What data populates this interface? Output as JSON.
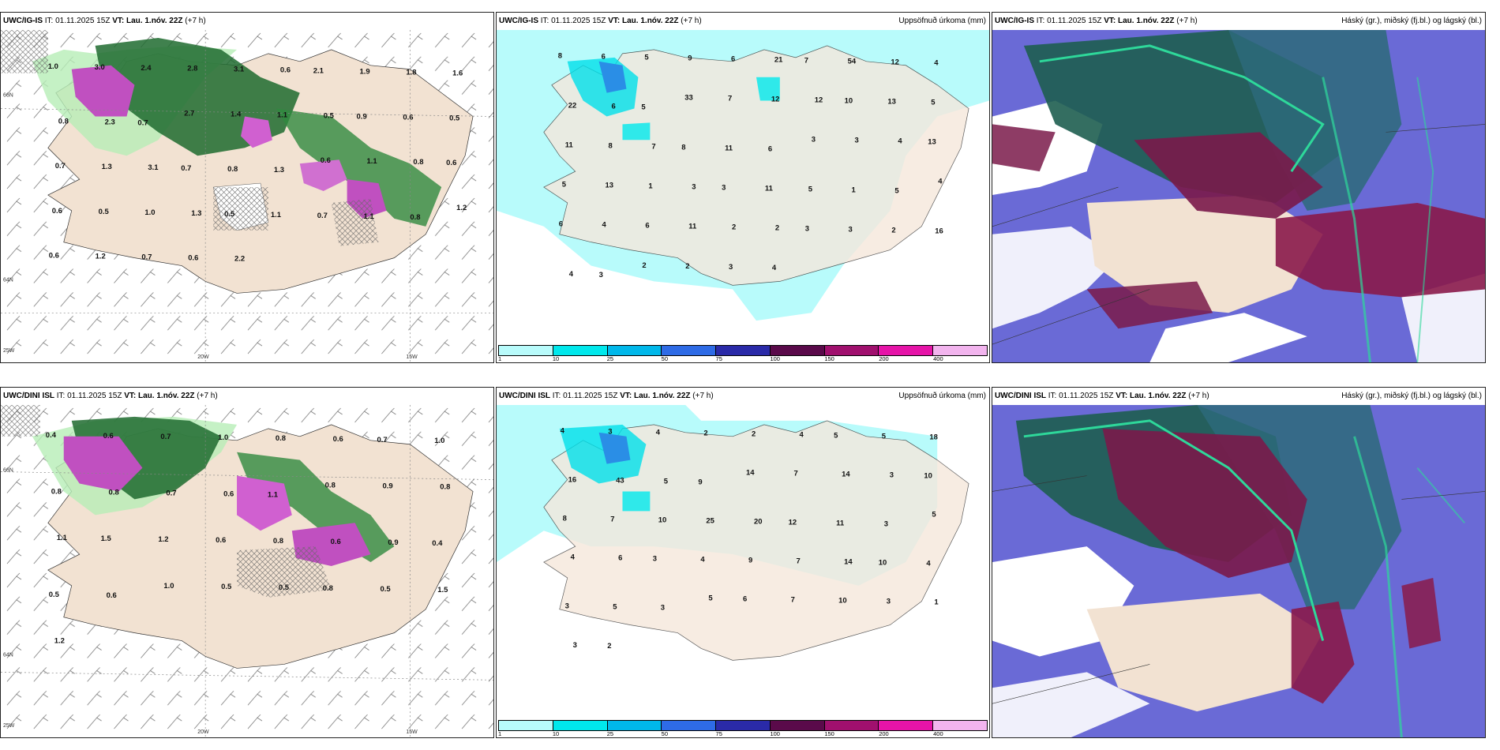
{
  "panels": {
    "p1": {
      "model": "UWC/IG-IS",
      "it_label": "IT:",
      "it": "01.11.2025 15Z",
      "vt_label": "VT:",
      "vt": "Lau. 1.nóv. 22Z",
      "offset": "(+7 h)",
      "right_title": ""
    },
    "p2": {
      "model": "UWC/IG-IS",
      "it_label": "IT:",
      "it": "01.11.2025 15Z",
      "vt_label": "VT:",
      "vt": "Lau. 1.nóv. 22Z",
      "offset": "(+7 h)",
      "right_title": "Uppsöfnuð úrkoma (mm)"
    },
    "p3": {
      "model": "UWC/IG-IS",
      "it_label": "IT:",
      "it": "01.11.2025 15Z",
      "vt_label": "VT:",
      "vt": "Lau. 1.nóv. 22Z",
      "offset": "(+7 h)",
      "right_title": "Háský (gr.), miðský (fj.bl.) og lágský (bl.)"
    },
    "p4": {
      "model": "UWC/DINI ISL",
      "it_label": "IT:",
      "it": "01.11.2025 15Z",
      "vt_label": "VT:",
      "vt": "Lau. 1.nóv. 22Z",
      "offset": "(+7 h)",
      "right_title": ""
    },
    "p5": {
      "model": "UWC/DINI ISL",
      "it_label": "IT:",
      "it": "01.11.2025 15Z",
      "vt_label": "VT:",
      "vt": "Lau. 1.nóv. 22Z",
      "offset": "(+7 h)",
      "right_title": "Uppsöfnuð úrkoma (mm)"
    },
    "p6": {
      "model": "UWC/DINI ISL",
      "it_label": "IT:",
      "it": "01.11.2025 15Z",
      "vt_label": "VT:",
      "vt": "Lau. 1.nóv. 22Z",
      "offset": "(+7 h)",
      "right_title": "Háský (gr.), miðský (fj.bl.) og lágský (bl.)"
    }
  },
  "axis_labels": {
    "lat66": "66N",
    "lat64": "64N",
    "lon25": "25W",
    "lon20": "20W",
    "lon15": "15W"
  },
  "colorbar": {
    "colors": [
      "#b8fbfb",
      "#00e8ec",
      "#00b8ea",
      "#2e6be6",
      "#2a2aa8",
      "#5a0a4a",
      "#a0106e",
      "#e614a8",
      "#f2b4ee"
    ],
    "ticks": [
      "1",
      "10",
      "25",
      "50",
      "75",
      "100",
      "150",
      "200",
      "400"
    ]
  },
  "p1_values": [
    "1.0",
    "3.0",
    "2.4",
    "2.8",
    "3.1",
    "0.6",
    "2.1",
    "1.9",
    "1.8",
    "1.6",
    "0.8",
    "2.3",
    "0.7",
    "2.7",
    "1.4",
    "1.1",
    "0.5",
    "0.9",
    "0.6",
    "0.5",
    "0.7",
    "1.3",
    "3.1",
    "0.7",
    "0.8",
    "1.3",
    "0.6",
    "1.1",
    "0.8",
    "0.6",
    "0.6",
    "0.5",
    "1.0",
    "1.3",
    "0.5",
    "1.1",
    "0.7",
    "1.1",
    "0.8",
    "1.2",
    "0.6",
    "1.2",
    "0.7",
    "0.6",
    "2.2"
  ],
  "p2_values": [
    "8",
    "6",
    "5",
    "9",
    "6",
    "21",
    "7",
    "54",
    "12",
    "4",
    "22",
    "6",
    "5",
    "33",
    "7",
    "12",
    "12",
    "10",
    "13",
    "5",
    "11",
    "8",
    "7",
    "8",
    "11",
    "6",
    "3",
    "3",
    "4",
    "13",
    "5",
    "13",
    "1",
    "3",
    "3",
    "11",
    "5",
    "1",
    "5",
    "4",
    "6",
    "4",
    "6",
    "11",
    "2",
    "2",
    "3",
    "3",
    "2",
    "16",
    "4",
    "3",
    "2",
    "2",
    "3",
    "4"
  ],
  "p4_values": [
    "0.4",
    "0.6",
    "0.7",
    "1.0",
    "0.8",
    "0.6",
    "0.7",
    "1.0",
    "0.8",
    "0.8",
    "0.7",
    "0.6",
    "1.1",
    "0.8",
    "0.9",
    "0.8",
    "1.1",
    "1.5",
    "1.2",
    "0.6",
    "0.8",
    "0.6",
    "0.9",
    "0.4",
    "0.5",
    "0.6",
    "1.0",
    "0.5",
    "0.5",
    "0.8",
    "0.5",
    "1.5",
    "1.2"
  ],
  "p5_values": [
    "4",
    "3",
    "4",
    "2",
    "2",
    "4",
    "5",
    "5",
    "18",
    "16",
    "43",
    "5",
    "9",
    "14",
    "7",
    "14",
    "3",
    "10",
    "8",
    "7",
    "10",
    "25",
    "20",
    "12",
    "11",
    "3",
    "5",
    "4",
    "6",
    "3",
    "4",
    "9",
    "7",
    "14",
    "10",
    "4",
    "3",
    "5",
    "3",
    "5",
    "6",
    "7",
    "10",
    "3",
    "1",
    "3",
    "2"
  ]
}
